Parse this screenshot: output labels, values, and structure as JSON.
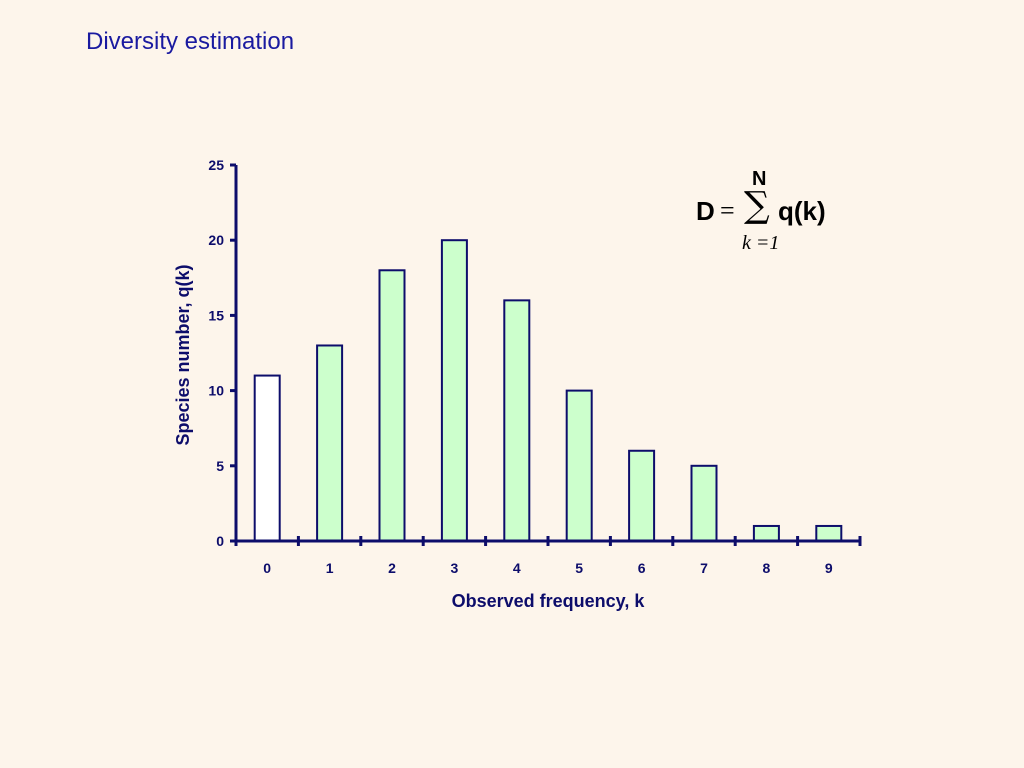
{
  "slide": {
    "title": "Diversity estimation"
  },
  "formula": {
    "lhs": "D",
    "eq": "=",
    "sigma": "∑",
    "upper": "N",
    "lower": "k =1",
    "rhs": "q(k)"
  },
  "colors": {
    "background": "#fdf5eb",
    "axis": "#0d0d6b",
    "bar_fill": "#ccffcc",
    "bar_fill_first": "#ffffff",
    "bar_stroke": "#0d0d6b",
    "title": "#1a1aa0"
  },
  "chart_data": {
    "type": "bar",
    "categories": [
      "0",
      "1",
      "2",
      "3",
      "4",
      "5",
      "6",
      "7",
      "8",
      "9"
    ],
    "values": [
      11,
      13,
      18,
      20,
      16,
      10,
      6,
      5,
      1,
      1
    ],
    "xlabel": "Observed frequency, k",
    "ylabel": "Species number, q(k)",
    "ylim": [
      0,
      25
    ],
    "yticks": [
      0,
      5,
      10,
      15,
      20,
      25
    ],
    "grid": false,
    "legend": "none"
  }
}
